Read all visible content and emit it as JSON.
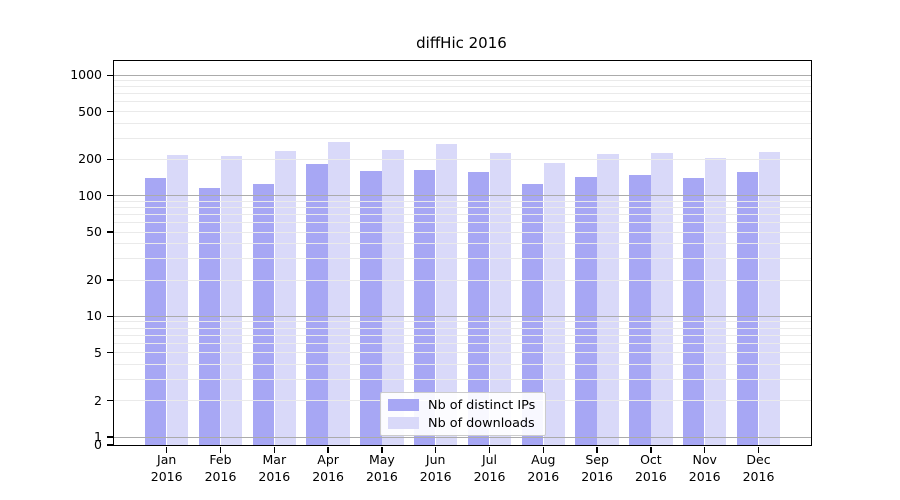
{
  "title": "diffHic 2016",
  "colors": {
    "distinct_ips_bar": "#a7a7f4",
    "downloads_bar": "#d9d9f9",
    "major_gridline": "#ababab",
    "minor_gridline": "#eaeaea",
    "axis": "#000000",
    "legend_border": "#cccccc"
  },
  "legend": {
    "items": [
      {
        "label": "Nb of distinct IPs",
        "color": "#a7a7f4"
      },
      {
        "label": "Nb of downloads",
        "color": "#d9d9f9"
      }
    ]
  },
  "chart_data": {
    "type": "bar",
    "title": "diffHic 2016",
    "categories": [
      "Jan 2016",
      "Feb 2016",
      "Mar 2016",
      "Apr 2016",
      "May 2016",
      "Jun 2016",
      "Jul 2016",
      "Aug 2016",
      "Sep 2016",
      "Oct 2016",
      "Nov 2016",
      "Dec 2016"
    ],
    "series": [
      {
        "name": "Nb of distinct IPs",
        "color": "#a7a7f4",
        "values": [
          140,
          115,
          125,
          183,
          160,
          163,
          158,
          125,
          143,
          150,
          140,
          158
        ]
      },
      {
        "name": "Nb of downloads",
        "color": "#d9d9f9",
        "values": [
          220,
          213,
          234,
          280,
          242,
          271,
          228,
          188,
          223,
          228,
          206,
          232
        ]
      }
    ],
    "xlabel": "",
    "ylabel": "",
    "y_scale": "log",
    "y_tick_labels": [
      "1000",
      "500",
      "200",
      "100",
      "50",
      "20",
      "10",
      "5",
      "2",
      "1",
      "0"
    ],
    "y_tick_values": [
      1000,
      500,
      200,
      100,
      50,
      20,
      10,
      5,
      2,
      1,
      0
    ],
    "ylim": [
      0,
      1230
    ],
    "grid": "both",
    "legend_position": "lower-center"
  }
}
